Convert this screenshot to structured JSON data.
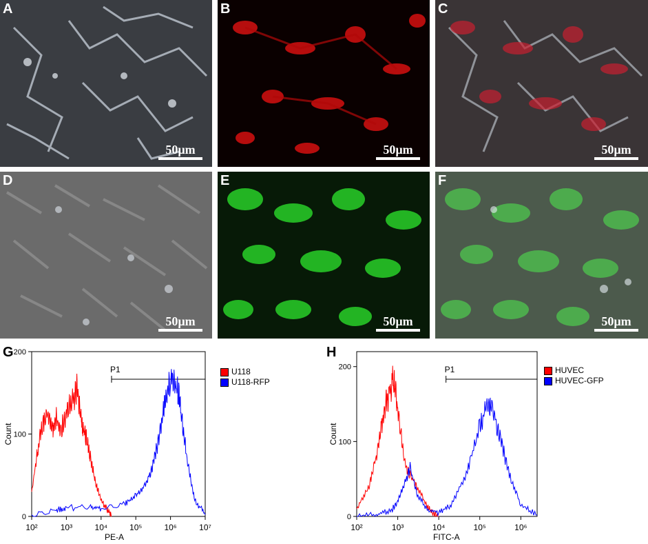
{
  "panels": {
    "A": {
      "label": "A",
      "scale": "50µm"
    },
    "B": {
      "label": "B",
      "scale": "50µm"
    },
    "C": {
      "label": "C",
      "scale": "50µm"
    },
    "D": {
      "label": "D",
      "scale": "50µm"
    },
    "E": {
      "label": "E",
      "scale": "50µm"
    },
    "F": {
      "label": "F",
      "scale": "50µm"
    }
  },
  "colors": {
    "red_channel": "#e01010",
    "green_channel": "#20d020",
    "phase_bg": "#2a2a2a"
  },
  "chart_data": [
    {
      "type": "line",
      "panel_label": "G",
      "xlabel": "PE-A",
      "ylabel": "Count",
      "x_scale": "log",
      "x_ticks": [
        "10²",
        "10³",
        "10⁴",
        "10⁵",
        "10⁶",
        "10⁷"
      ],
      "xlim": [
        100,
        10000000
      ],
      "y_ticks": [
        "0",
        "100",
        "200"
      ],
      "ylim": [
        0,
        200
      ],
      "gate": {
        "label": "P1",
        "range": [
          20000,
          10000000
        ]
      },
      "series": [
        {
          "name": "U118",
          "color": "#ff0000",
          "x": [
            100,
            150,
            200,
            300,
            400,
            500,
            700,
            1000,
            1500,
            2000,
            2500,
            3000,
            4000,
            5000,
            7000,
            10000,
            15000,
            20000
          ],
          "y": [
            30,
            80,
            110,
            125,
            105,
            120,
            105,
            125,
            140,
            155,
            130,
            110,
            90,
            70,
            40,
            20,
            8,
            0
          ]
        },
        {
          "name": "U118-RFP",
          "color": "#0000ff",
          "x": [
            100,
            500,
            1000,
            5000,
            10000,
            50000,
            100000,
            200000,
            300000,
            500000,
            700000,
            1000000,
            1500000,
            2000000,
            3000000,
            5000000,
            10000000
          ],
          "y": [
            2,
            8,
            10,
            12,
            10,
            15,
            25,
            40,
            60,
            100,
            140,
            165,
            160,
            130,
            70,
            20,
            2
          ]
        }
      ]
    },
    {
      "type": "line",
      "panel_label": "H",
      "xlabel": "FITC-A",
      "ylabel": "Count",
      "x_scale": "log",
      "x_ticks": [
        "10²",
        "10³",
        "10⁴",
        "10⁵",
        "10⁶"
      ],
      "xlim": [
        100,
        2500000
      ],
      "y_ticks": [
        "0",
        "100",
        "200"
      ],
      "ylim": [
        0,
        220
      ],
      "gate": {
        "label": "P1",
        "range": [
          15000,
          2500000
        ]
      },
      "series": [
        {
          "name": "HUVEC",
          "color": "#ff0000",
          "x": [
            100,
            200,
            300,
            400,
            500,
            600,
            800,
            1000,
            1500,
            2000,
            3000,
            5000,
            7000,
            10000
          ],
          "y": [
            10,
            40,
            80,
            120,
            150,
            160,
            185,
            140,
            70,
            55,
            40,
            15,
            5,
            0
          ]
        },
        {
          "name": "HUVEC-GFP",
          "color": "#0000ff",
          "x": [
            100,
            300,
            700,
            1000,
            1500,
            2000,
            3000,
            5000,
            10000,
            20000,
            50000,
            100000,
            150000,
            200000,
            300000,
            500000,
            1000000,
            2500000
          ],
          "y": [
            0,
            2,
            8,
            20,
            45,
            65,
            30,
            10,
            5,
            15,
            60,
            120,
            150,
            145,
            110,
            60,
            15,
            2
          ]
        }
      ]
    }
  ]
}
